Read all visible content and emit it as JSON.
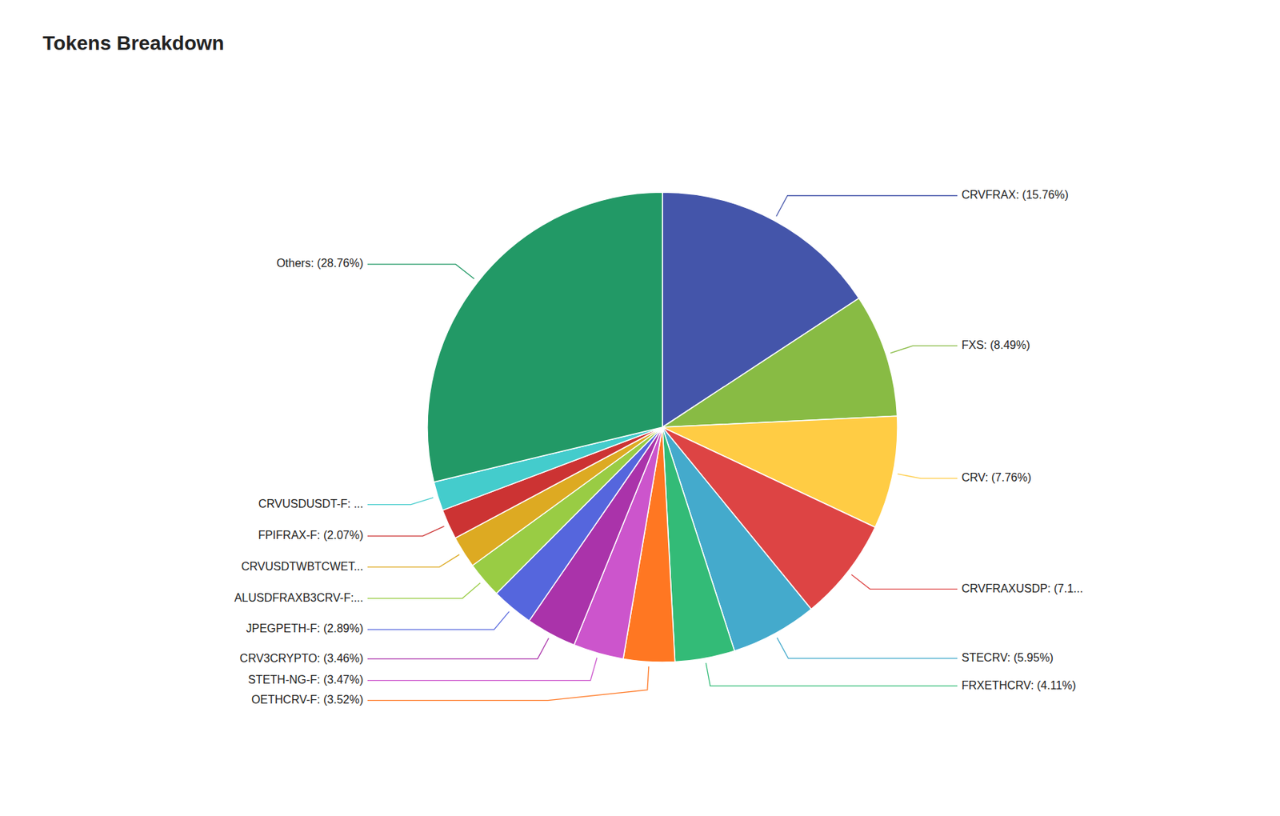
{
  "chart_data": {
    "type": "pie",
    "title": "Tokens Breakdown",
    "categories": [
      "CRVFRAX: (15.76%)",
      "FXS: (8.49%)",
      "CRV: (7.76%)",
      "CRVFRAXUSDP: (7.1...",
      "STECRV: (5.95%)",
      "FRXETHCRV: (4.11%)",
      "OETHCRV-F: (3.52%)",
      "STETH-NG-F: (3.47%)",
      "CRV3CRYPTO: (3.46%)",
      "JPEGPETH-F: (2.89%)",
      "ALUSDFRAXB3CRV-F:...",
      "CRVUSDTWBTCWET...",
      "FPIFRAX-F: (2.07%)",
      "CRVUSDUSDT-F: ...",
      "Others: (28.76%)"
    ],
    "values": [
      15.76,
      8.49,
      7.76,
      7.1,
      5.95,
      4.11,
      3.52,
      3.47,
      3.46,
      2.89,
      2.5,
      2.2,
      2.07,
      2.0,
      28.76
    ],
    "colors": [
      "#4455aa",
      "#88bb44",
      "#ffcc44",
      "#dd4444",
      "#44aacc",
      "#33bb77",
      "#ff7722",
      "#cc55cc",
      "#aa33aa",
      "#5566dd",
      "#99cc44",
      "#ddaa22",
      "#cc3333",
      "#44cccc",
      "#229966"
    ]
  }
}
